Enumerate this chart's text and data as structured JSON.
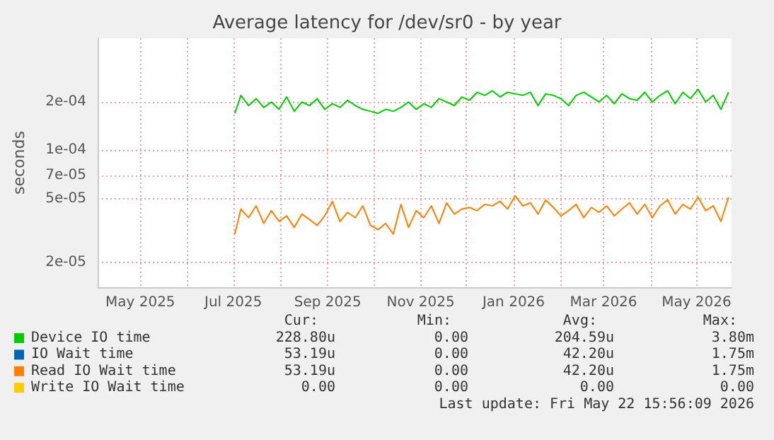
{
  "chart_data": {
    "type": "line",
    "title": "Average latency for /dev/sr0 - by year",
    "ylabel": "seconds",
    "x": [
      "2025-07-02",
      "2025-07-06",
      "2025-07-11",
      "2025-07-16",
      "2025-07-21",
      "2025-07-26",
      "2025-07-31",
      "2025-08-05",
      "2025-08-10",
      "2025-08-15",
      "2025-08-20",
      "2025-08-25",
      "2025-08-30",
      "2025-09-04",
      "2025-09-09",
      "2025-09-14",
      "2025-09-19",
      "2025-09-24",
      "2025-09-29",
      "2025-10-04",
      "2025-10-09",
      "2025-10-14",
      "2025-10-19",
      "2025-10-24",
      "2025-10-29",
      "2025-11-03",
      "2025-11-08",
      "2025-11-13",
      "2025-11-18",
      "2025-11-23",
      "2025-11-28",
      "2025-12-03",
      "2025-12-08",
      "2025-12-13",
      "2025-12-18",
      "2025-12-23",
      "2025-12-28",
      "2026-01-02",
      "2026-01-07",
      "2026-01-12",
      "2026-01-17",
      "2026-01-22",
      "2026-01-27",
      "2026-02-01",
      "2026-02-06",
      "2026-02-11",
      "2026-02-16",
      "2026-02-21",
      "2026-02-26",
      "2026-03-03",
      "2026-03-08",
      "2026-03-13",
      "2026-03-18",
      "2026-03-23",
      "2026-03-28",
      "2026-04-02",
      "2026-04-07",
      "2026-04-12",
      "2026-04-17",
      "2026-04-22",
      "2026-04-27",
      "2026-05-02",
      "2026-05-07",
      "2026-05-12",
      "2026-05-17",
      "2026-05-22"
    ],
    "series": [
      {
        "name": "Device IO time",
        "color": "#00cc00",
        "values": [
          0.00017,
          0.00022,
          0.00019,
          0.00021,
          0.000185,
          0.0002,
          0.00018,
          0.000215,
          0.000175,
          0.0002,
          0.00019,
          0.00021,
          0.00018,
          0.000195,
          0.000185,
          0.000205,
          0.00019,
          0.00018,
          0.000175,
          0.00017,
          0.00018,
          0.000175,
          0.000185,
          0.0002,
          0.00018,
          0.000195,
          0.000185,
          0.00021,
          0.0002,
          0.00019,
          0.000215,
          0.000205,
          0.00023,
          0.00022,
          0.000235,
          0.000215,
          0.00023,
          0.000225,
          0.00022,
          0.00023,
          0.00019,
          0.000225,
          0.00022,
          0.00021,
          0.00019,
          0.00022,
          0.00023,
          0.000215,
          0.0002,
          0.00022,
          0.000195,
          0.000225,
          0.00021,
          0.000205,
          0.00023,
          0.0002,
          0.00022,
          0.000235,
          0.000195,
          0.00023,
          0.00021,
          0.00024,
          0.0002,
          0.00022,
          0.00018,
          0.00023
        ]
      },
      {
        "name": "IO Wait time",
        "color": "#0066b3",
        "values": [
          null,
          null,
          null,
          null,
          null,
          null,
          null,
          null,
          null,
          null,
          null,
          null,
          null,
          null,
          null,
          null,
          null,
          null,
          null,
          null,
          null,
          null,
          null,
          null,
          null,
          null,
          null,
          null,
          null,
          null,
          null,
          null,
          null,
          null,
          null,
          null,
          null,
          null,
          null,
          null,
          null,
          null,
          null,
          null,
          null,
          null,
          null,
          null,
          null,
          null,
          null,
          null,
          null,
          null,
          null,
          null,
          null,
          null,
          null,
          null,
          null,
          null,
          null,
          null,
          null,
          null
        ]
      },
      {
        "name": "Read IO Wait time",
        "color": "#ff8000",
        "values": [
          3e-05,
          4.3e-05,
          3.8e-05,
          4.5e-05,
          3.5e-05,
          4.2e-05,
          3.6e-05,
          3.9e-05,
          3.3e-05,
          4e-05,
          3.7e-05,
          3.4e-05,
          3.9e-05,
          4.8e-05,
          3.6e-05,
          4.1e-05,
          3.8e-05,
          4.5e-05,
          3.4e-05,
          3.2e-05,
          3.5e-05,
          3e-05,
          4.6e-05,
          3.3e-05,
          4.2e-05,
          3.8e-05,
          4.5e-05,
          3.5e-05,
          4.7e-05,
          4e-05,
          4.3e-05,
          4.4e-05,
          4.2e-05,
          4.6e-05,
          4.5e-05,
          4.8e-05,
          4.3e-05,
          5.2e-05,
          4.5e-05,
          4.7e-05,
          4e-05,
          4.9e-05,
          4.4e-05,
          3.9e-05,
          4.2e-05,
          4.6e-05,
          3.8e-05,
          4.4e-05,
          4.1e-05,
          4.5e-05,
          3.9e-05,
          4.3e-05,
          4.7e-05,
          4e-05,
          4.6e-05,
          3.8e-05,
          4.5e-05,
          4.9e-05,
          4e-05,
          4.6e-05,
          4.3e-05,
          5.1e-05,
          4.2e-05,
          4.5e-05,
          3.6e-05,
          5.1e-05
        ]
      },
      {
        "name": "Write IO Wait time",
        "color": "#ffcc00",
        "values": [
          null,
          null,
          null,
          null,
          null,
          null,
          null,
          null,
          null,
          null,
          null,
          null,
          null,
          null,
          null,
          null,
          null,
          null,
          null,
          null,
          null,
          null,
          null,
          null,
          null,
          null,
          null,
          null,
          null,
          null,
          null,
          null,
          null,
          null,
          null,
          null,
          null,
          null,
          null,
          null,
          null,
          null,
          null,
          null,
          null,
          null,
          null,
          null,
          null,
          null,
          null,
          null,
          null,
          null,
          null,
          null,
          null,
          null,
          null,
          null,
          null,
          null,
          null,
          null,
          null,
          null
        ]
      }
    ],
    "xlim": [
      "2025-04-03",
      "2026-05-24"
    ],
    "xticks": [
      {
        "value": "2025-05-01",
        "label": "May 2025"
      },
      {
        "value": "2025-06-01",
        "label": null
      },
      {
        "value": "2025-07-01",
        "label": "Jul 2025"
      },
      {
        "value": "2025-08-01",
        "label": null
      },
      {
        "value": "2025-09-01",
        "label": "Sep 2025"
      },
      {
        "value": "2025-10-01",
        "label": null
      },
      {
        "value": "2025-11-01",
        "label": "Nov 2025"
      },
      {
        "value": "2025-12-01",
        "label": null
      },
      {
        "value": "2026-01-01",
        "label": "Jan 2026"
      },
      {
        "value": "2026-02-01",
        "label": null
      },
      {
        "value": "2026-03-01",
        "label": "Mar 2026"
      },
      {
        "value": "2026-04-01",
        "label": null
      },
      {
        "value": "2026-05-01",
        "label": "May 2026"
      }
    ],
    "ylim": [
      1.4e-05,
      0.0005
    ],
    "yticks": [
      {
        "value": 2e-05,
        "label": "2e-05"
      },
      {
        "value": 5e-05,
        "label": "5e-05"
      },
      {
        "value": 7e-05,
        "label": "7e-05"
      },
      {
        "value": 0.0001,
        "label": "1e-04"
      },
      {
        "value": 0.0002,
        "label": "2e-04"
      }
    ],
    "log": "y",
    "grid": true,
    "legend": "bottom",
    "marker": "none",
    "line_style": "solid",
    "annotations": [
      "Cur:",
      "Min:",
      "Avg:",
      "Max:",
      "228.80u",
      "0.00",
      "204.59u",
      "3.80m",
      "53.19u",
      "0.00",
      "42.20u",
      "1.75m",
      "53.19u",
      "0.00",
      "42.20u",
      "1.75m",
      "0.00",
      "0.00",
      "0.00",
      "0.00",
      "Last update: Fri May 22 15:56:09 2026"
    ]
  }
}
